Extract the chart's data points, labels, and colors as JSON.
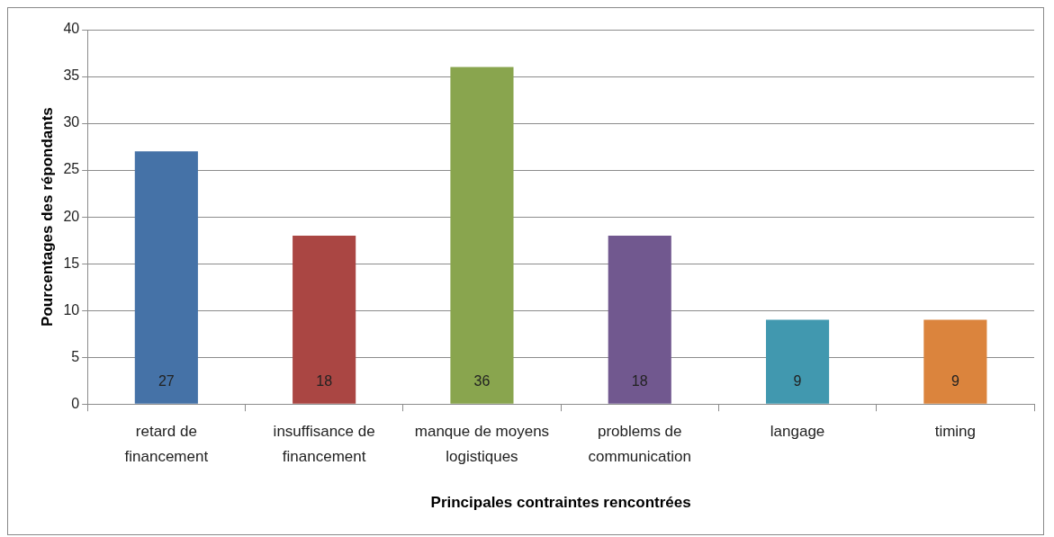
{
  "chart_data": {
    "type": "bar",
    "xlabel": "Principales contraintes rencontrées",
    "ylabel": "Pourcentages des répondants",
    "categories": [
      "retard de financement",
      "insuffisance de financement",
      "manque de moyens logistiques",
      "problems de communication",
      "langage",
      "timing"
    ],
    "values": [
      27,
      18,
      36,
      18,
      9,
      9
    ],
    "colors": [
      "#4572a7",
      "#aa4643",
      "#89a54e",
      "#71588f",
      "#4198af",
      "#db843d"
    ],
    "ylim": [
      0,
      40
    ],
    "yticks": [
      0,
      5,
      10,
      15,
      20,
      25,
      30,
      35,
      40
    ],
    "grid": "y",
    "legend": false,
    "data_labels": true
  }
}
